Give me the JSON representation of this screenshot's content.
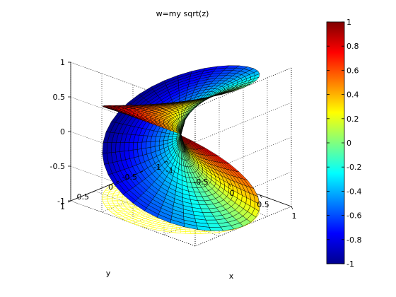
{
  "chart_data": {
    "type": "surface",
    "title": "w=my sqrt(z)",
    "xlabel": "x",
    "ylabel": "y",
    "zlabel": "",
    "function": "w = sqrt(z), z = x + i*y on the unit disk; height = Re(w) on both sheets, color = Im(w)",
    "xlim": [
      -1,
      1
    ],
    "ylim": [
      -1,
      1
    ],
    "zlim": [
      -1,
      1
    ],
    "x_ticks": [
      "-1",
      "-0.5",
      "0",
      "0.5",
      "1"
    ],
    "y_ticks": [
      "-1",
      "-0.5",
      "0",
      "0.5",
      "1"
    ],
    "z_ticks": [
      "-1",
      "-0.5",
      "0",
      "0.5",
      "1"
    ],
    "grid": true,
    "view": {
      "azimuth_deg": -37.5,
      "elevation_deg": 30
    },
    "colorbar": {
      "colormap": "jet",
      "range": [
        -1,
        1
      ],
      "ticks": [
        "1",
        "0.8",
        "0.6",
        "0.4",
        "0.2",
        "0",
        "-0.2",
        "-0.4",
        "-0.6",
        "-0.8",
        "-1"
      ]
    },
    "projection_disk": {
      "color": "#ffff00",
      "grid_lines": "polar mesh of the unit disk at z = -1"
    }
  }
}
